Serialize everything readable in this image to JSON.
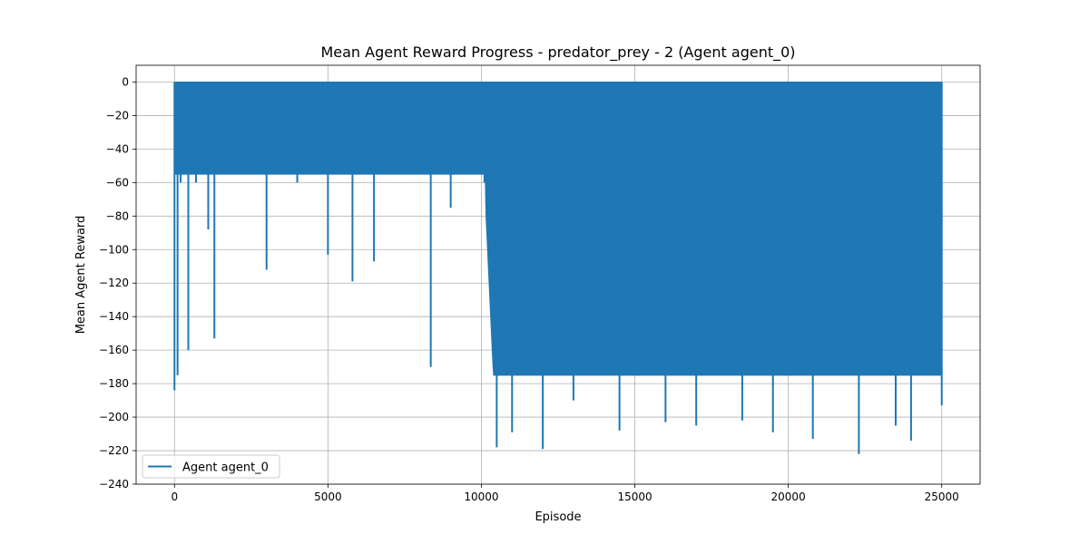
{
  "chart_data": {
    "type": "line",
    "title": "Mean Agent Reward Progress - predator_prey - 2 (Agent agent_0)",
    "xlabel": "Episode",
    "ylabel": "Mean Agent Reward",
    "xlim": [
      -1250,
      26250
    ],
    "ylim": [
      -240,
      10
    ],
    "xticks": [
      0,
      5000,
      10000,
      15000,
      20000,
      25000
    ],
    "yticks": [
      0,
      -20,
      -40,
      -60,
      -80,
      -100,
      -120,
      -140,
      -160,
      -180,
      -200,
      -220,
      -240
    ],
    "grid": true,
    "legend_position": "lower-left",
    "series": [
      {
        "name": "Agent agent_0",
        "color": "#1f77b4",
        "x_range": [
          0,
          25000
        ],
        "upper_envelope": 0,
        "notes_lower_envelope": [
          {
            "x": 0,
            "y": -184
          },
          {
            "x": 100,
            "y": -175
          },
          {
            "x": 200,
            "y": -60
          },
          {
            "x": 450,
            "y": -160
          },
          {
            "x": 700,
            "y": -60
          },
          {
            "x": 1100,
            "y": -88
          },
          {
            "x": 1300,
            "y": -153
          },
          {
            "x": 2000,
            "y": -55
          },
          {
            "x": 3000,
            "y": -112
          },
          {
            "x": 4000,
            "y": -60
          },
          {
            "x": 5000,
            "y": -103
          },
          {
            "x": 5800,
            "y": -119
          },
          {
            "x": 6500,
            "y": -107
          },
          {
            "x": 7500,
            "y": -55
          },
          {
            "x": 8350,
            "y": -170
          },
          {
            "x": 9000,
            "y": -75
          },
          {
            "x": 10100,
            "y": -60
          },
          {
            "x": 10500,
            "y": -218
          },
          {
            "x": 11000,
            "y": -209
          },
          {
            "x": 12000,
            "y": -219
          },
          {
            "x": 13000,
            "y": -190
          },
          {
            "x": 14500,
            "y": -208
          },
          {
            "x": 16000,
            "y": -203
          },
          {
            "x": 17000,
            "y": -205
          },
          {
            "x": 18500,
            "y": -202
          },
          {
            "x": 19500,
            "y": -209
          },
          {
            "x": 20800,
            "y": -213
          },
          {
            "x": 22300,
            "y": -222
          },
          {
            "x": 23500,
            "y": -205
          },
          {
            "x": 24000,
            "y": -214
          },
          {
            "x": 25000,
            "y": -193
          }
        ]
      }
    ]
  }
}
